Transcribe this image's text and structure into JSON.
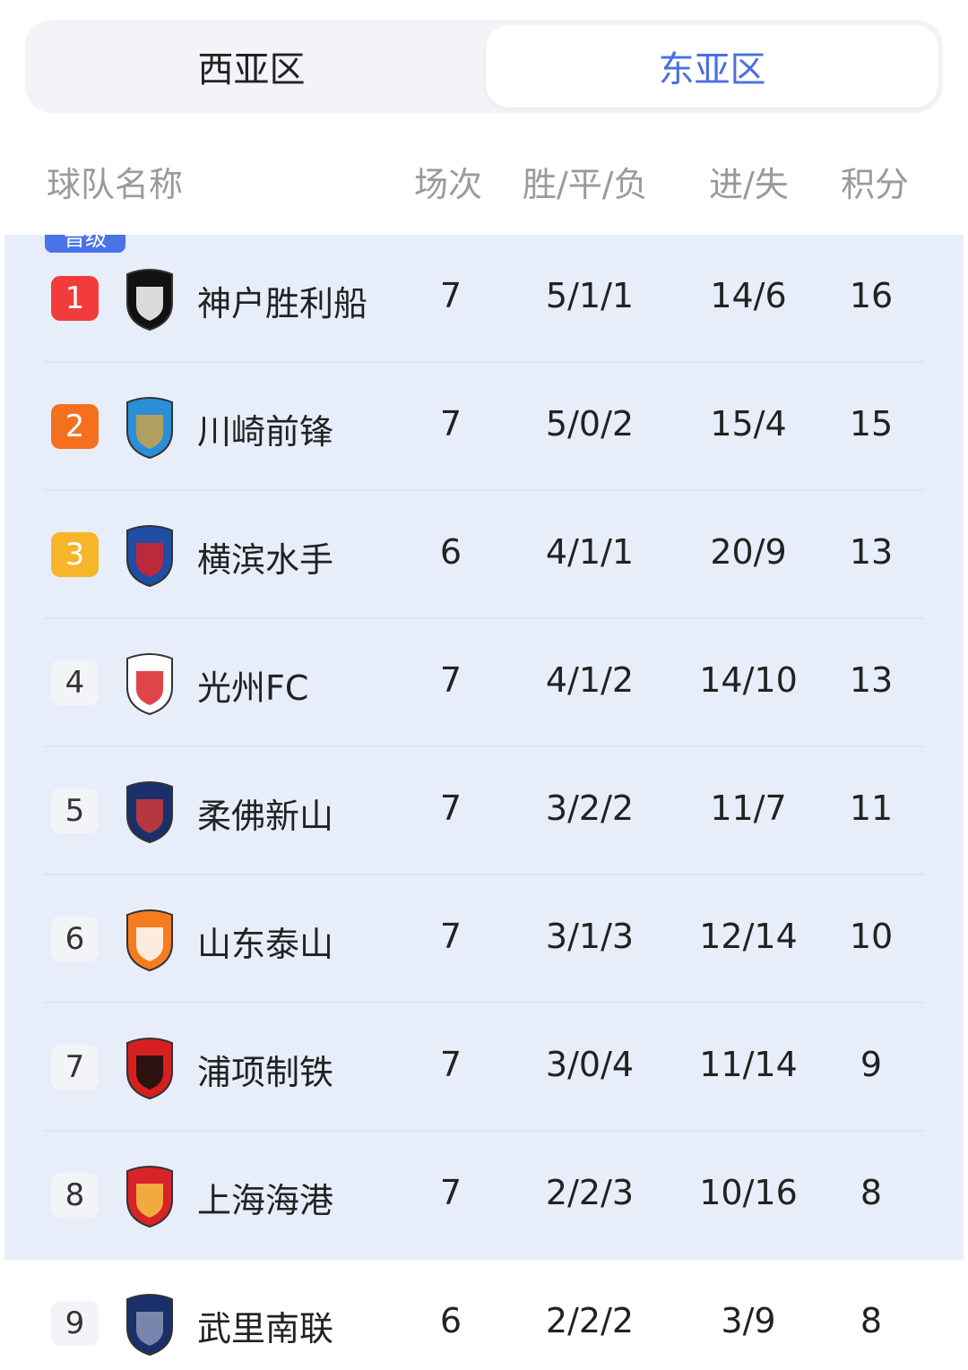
{
  "tabs": [
    {
      "label": "西亚区",
      "active": false
    },
    {
      "label": "东亚区",
      "active": true
    }
  ],
  "accent_color": "#4a6fe3",
  "header": {
    "team": "球队名称",
    "played": "场次",
    "wdl": "胜/平/负",
    "goals": "进/失",
    "points": "积分"
  },
  "promotion_badge": "晋级",
  "rows": [
    {
      "rank": "1",
      "team": "神户胜利船",
      "played": "7",
      "wdl": "5/1/1",
      "goals": "14/6",
      "points": "16",
      "logo": "vissel-kobe-logo"
    },
    {
      "rank": "2",
      "team": "川崎前锋",
      "played": "7",
      "wdl": "5/0/2",
      "goals": "15/4",
      "points": "15",
      "logo": "kawasaki-frontale-logo"
    },
    {
      "rank": "3",
      "team": "横滨水手",
      "played": "6",
      "wdl": "4/1/1",
      "goals": "20/9",
      "points": "13",
      "logo": "yokohama-marinos-logo"
    },
    {
      "rank": "4",
      "team": "光州FC",
      "played": "7",
      "wdl": "4/1/2",
      "goals": "14/10",
      "points": "13",
      "logo": "gwangju-fc-logo"
    },
    {
      "rank": "5",
      "team": "柔佛新山",
      "played": "7",
      "wdl": "3/2/2",
      "goals": "11/7",
      "points": "11",
      "logo": "johor-logo"
    },
    {
      "rank": "6",
      "team": "山东泰山",
      "played": "7",
      "wdl": "3/1/3",
      "goals": "12/14",
      "points": "10",
      "logo": "shandong-taishan-logo"
    },
    {
      "rank": "7",
      "team": "浦项制铁",
      "played": "7",
      "wdl": "3/0/4",
      "goals": "11/14",
      "points": "9",
      "logo": "pohang-steelers-logo"
    },
    {
      "rank": "8",
      "team": "上海海港",
      "played": "7",
      "wdl": "2/2/3",
      "goals": "10/16",
      "points": "8",
      "logo": "shanghai-port-logo"
    },
    {
      "rank": "9",
      "team": "武里南联",
      "played": "6",
      "wdl": "2/2/2",
      "goals": "3/9",
      "points": "8",
      "logo": "buriram-united-logo"
    }
  ]
}
